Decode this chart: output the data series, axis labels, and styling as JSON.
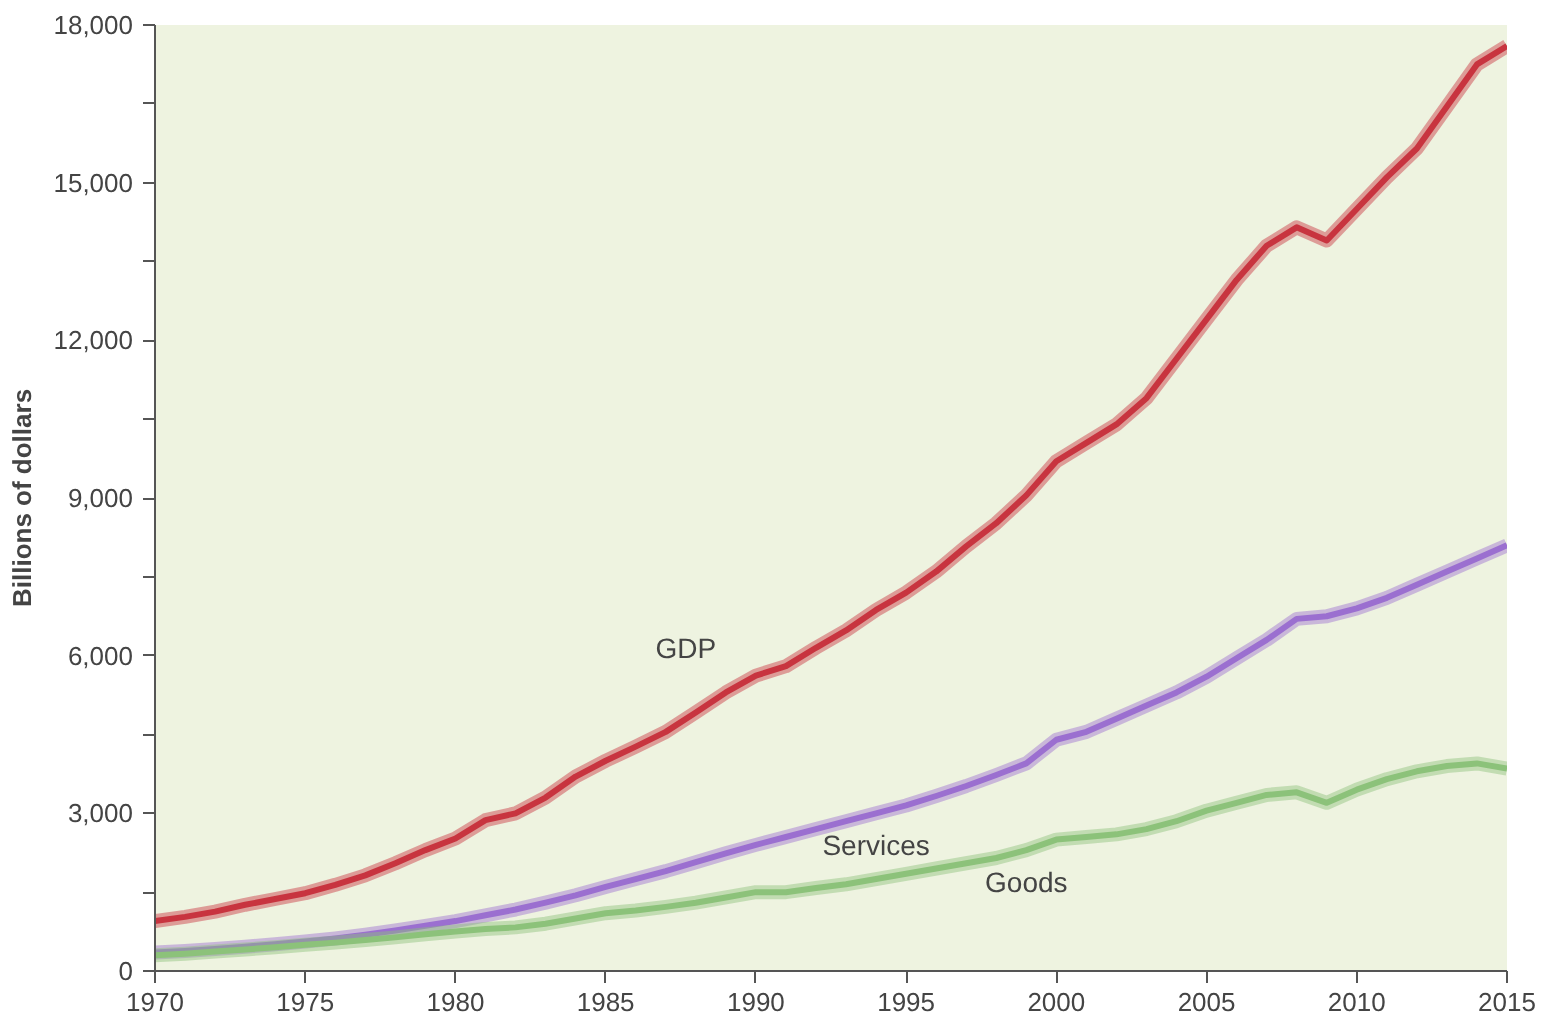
{
  "chart_data": {
    "type": "line",
    "ylabel": "Billions of dollars",
    "x": [
      1970,
      1971,
      1972,
      1973,
      1974,
      1975,
      1976,
      1977,
      1978,
      1979,
      1980,
      1981,
      1982,
      1983,
      1984,
      1985,
      1986,
      1987,
      1988,
      1989,
      1990,
      1991,
      1992,
      1993,
      1994,
      1995,
      1996,
      1997,
      1998,
      1999,
      2000,
      2001,
      2002,
      2003,
      2004,
      2005,
      2006,
      2007,
      2008,
      2009,
      2010,
      2011,
      2012,
      2013,
      2014,
      2015
    ],
    "series": [
      {
        "name": "GDP",
        "color": "#c8343f",
        "values": [
          950,
          1030,
          1130,
          1260,
          1370,
          1480,
          1640,
          1820,
          2050,
          2300,
          2520,
          2870,
          3000,
          3300,
          3700,
          4000,
          4270,
          4550,
          4920,
          5300,
          5620,
          5800,
          6150,
          6480,
          6870,
          7200,
          7600,
          8080,
          8520,
          9050,
          9700,
          10050,
          10400,
          10900,
          11650,
          12400,
          13150,
          13800,
          14150,
          13900,
          14500,
          15100,
          15650,
          16450,
          17250,
          17600
        ]
      },
      {
        "name": "Services",
        "color": "#9b6fd0",
        "values": [
          350,
          380,
          420,
          460,
          510,
          560,
          620,
          690,
          770,
          860,
          950,
          1060,
          1170,
          1300,
          1440,
          1600,
          1750,
          1900,
          2070,
          2240,
          2400,
          2550,
          2700,
          2850,
          3000,
          3150,
          3330,
          3520,
          3730,
          3950,
          4400,
          4550,
          4800,
          5050,
          5300,
          5600,
          5950,
          6300,
          6700,
          6750,
          6900,
          7100,
          7350,
          7600,
          7850,
          8100
        ]
      },
      {
        "name": "Goods",
        "color": "#8cc27a",
        "values": [
          300,
          330,
          370,
          410,
          450,
          500,
          540,
          590,
          640,
          700,
          750,
          800,
          830,
          900,
          1000,
          1100,
          1150,
          1220,
          1300,
          1400,
          1500,
          1500,
          1580,
          1650,
          1750,
          1850,
          1950,
          2050,
          2150,
          2300,
          2500,
          2550,
          2600,
          2700,
          2850,
          3050,
          3200,
          3350,
          3400,
          3200,
          3450,
          3650,
          3800,
          3900,
          3950,
          3850
        ]
      }
    ],
    "xlim": [
      1970,
      2015
    ],
    "ylim": [
      0,
      18000
    ],
    "xticks": [
      1970,
      1975,
      1980,
      1985,
      1990,
      1995,
      2000,
      2005,
      2010,
      2015
    ],
    "yticks": [
      {
        "value": 0,
        "label": "0"
      },
      {
        "value": 1500,
        "label": null
      },
      {
        "value": 3000,
        "label": "3,000"
      },
      {
        "value": 4500,
        "label": null
      },
      {
        "value": 6000,
        "label": "6,000"
      },
      {
        "value": 7500,
        "label": null
      },
      {
        "value": 9000,
        "label": "9,000"
      },
      {
        "value": 10500,
        "label": null
      },
      {
        "value": 12000,
        "label": "12,000"
      },
      {
        "value": 13500,
        "label": null
      },
      {
        "value": 15000,
        "label": "15,000"
      },
      {
        "value": 16500,
        "label": null
      },
      {
        "value": 18000,
        "label": "18,000"
      }
    ],
    "grid": false,
    "legend": false,
    "line_style": "solid"
  }
}
